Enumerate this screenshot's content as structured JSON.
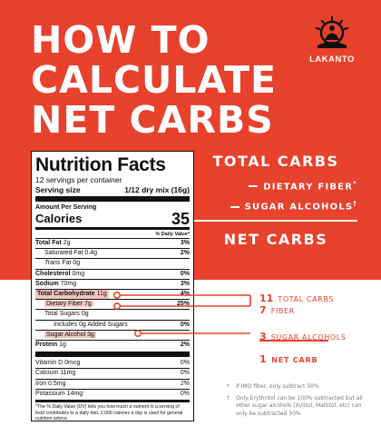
{
  "headline": [
    "HOW TO",
    "CALCULATE",
    "NET CARBS"
  ],
  "brand": {
    "name": "LAKANTO",
    "logo_icon": "meditating-figure-sun-icon"
  },
  "formula": {
    "total": "TOTAL CARBS",
    "minus1": "DIETARY FIBER",
    "minus1_mark": "*",
    "minus2": "SUGAR ALCOHOLS",
    "minus2_mark": "†",
    "result": "NET CARBS"
  },
  "label": {
    "title": "Nutrition Facts",
    "servings": "12 servings per container",
    "serving_size_label": "Serving size",
    "serving_size_value": "1/12 dry mix (16g)",
    "amount_per_serving": "Amount Per Serving",
    "calories_label": "Calories",
    "calories_value": "35",
    "dv_header": "% Daily Value*",
    "rows": [
      {
        "name": "Total Fat",
        "amount": "2g",
        "dv": "3%"
      },
      {
        "name": "Saturated Fat",
        "amount": "0.4g",
        "dv": "2%"
      },
      {
        "name": "Trans",
        "amount": "Fat 0g",
        "dv": ""
      },
      {
        "name": "Cholesterol",
        "amount": "0mg",
        "dv": "0%"
      },
      {
        "name": "Sodium",
        "amount": "70mg",
        "dv": "3%"
      },
      {
        "name": "Total Carbohydrate",
        "amount": "11g",
        "dv": "4%"
      },
      {
        "name": "Dietary Fiber",
        "amount": "7g",
        "dv": "25%"
      },
      {
        "name": "Total Sugars",
        "amount": "0g",
        "dv": ""
      },
      {
        "name": "Includes 0g Added Sugars",
        "amount": "",
        "dv": "0%"
      },
      {
        "name": "Sugar Alcohol",
        "amount": "3g",
        "dv": ""
      },
      {
        "name": "Protein",
        "amount": "1g",
        "dv": "2%"
      }
    ],
    "vitamins": [
      {
        "name": "Vitamin D 0mcg",
        "dv": "0%"
      },
      {
        "name": "Calcium 11mg",
        "dv": "0%"
      },
      {
        "name": "Iron 0.5mg",
        "dv": "2%"
      },
      {
        "name": "Potassium 14mg",
        "dv": "0%"
      }
    ],
    "footnote": "*The % Daily Value (DV) tells you how much a nutrient in a serving of food contributes to a daily diet. 2,000 calories a day is used for general nutrition advice."
  },
  "breakdown": {
    "total": {
      "num": "11",
      "text": "TOTAL CARBS"
    },
    "fiber": {
      "num": "7",
      "text": "FIBER"
    },
    "sugar": {
      "num": "3",
      "text": "SUGAR ALCOHOLS"
    },
    "net": {
      "num": "1",
      "text": "NET CARB"
    }
  },
  "notes": [
    {
      "mark": "*",
      "text": "If IMO fiber, only subtract 50%"
    },
    {
      "mark": "†",
      "text": "Only Erythritol can be 100% subtracted but all other sugar alcohols (Xylitol, Maltitol, etc) can only be subtracted 50%"
    }
  ],
  "colors": {
    "brand_red": "#e8412c",
    "highlight": "#f3c6bf",
    "white": "#ffffff"
  }
}
